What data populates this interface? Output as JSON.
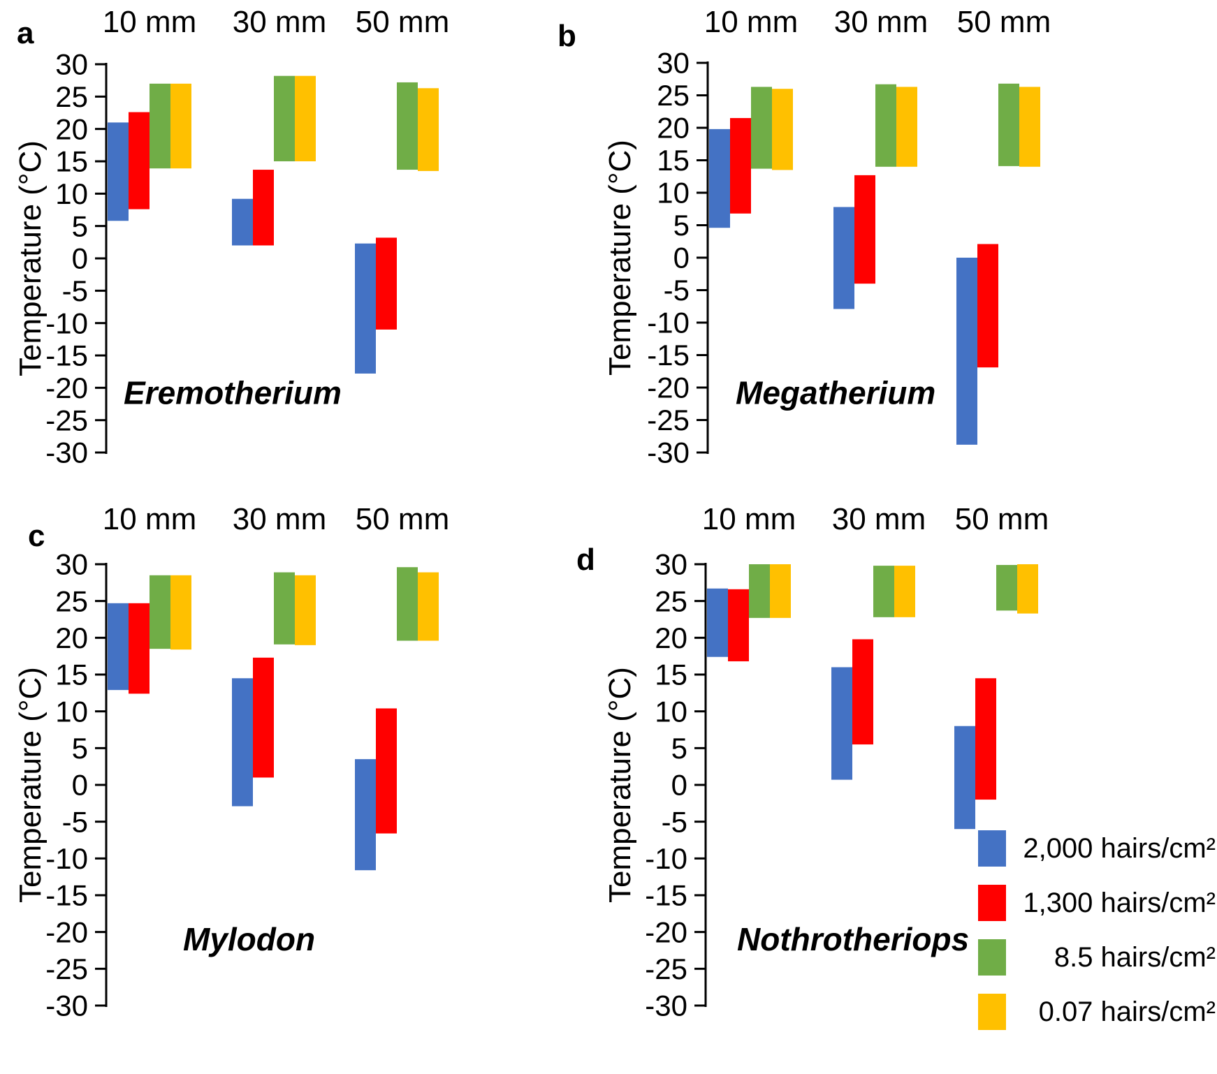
{
  "page": {
    "background": "#ffffff",
    "text_color": "#000000"
  },
  "axis": {
    "ylabel": "Temperature (°C)",
    "ylim": [
      -30,
      30
    ],
    "ytick_step": 5,
    "yticks": [
      30,
      25,
      20,
      15,
      10,
      5,
      0,
      -5,
      -10,
      -15,
      -20,
      -25,
      -30
    ]
  },
  "colors": {
    "blue": "#4472C4",
    "red": "#FF0000",
    "green": "#70AD47",
    "yellow": "#FFC000",
    "axis": "#000000"
  },
  "legend": {
    "items": [
      {
        "name": "density-2000",
        "label": "2,000 hairs/cm²",
        "color": "#4472C4"
      },
      {
        "name": "density-1300",
        "label": "1,300 hairs/cm²",
        "color": "#FF0000"
      },
      {
        "name": "density-8-5",
        "label": "8.5 hairs/cm²",
        "color": "#70AD47"
      },
      {
        "name": "density-0-07",
        "label": "0.07 hairs/cm²",
        "color": "#FFC000"
      }
    ]
  },
  "chart_data": [
    {
      "type": "bar",
      "subtype": "floating-range-bars",
      "panel_letter": "a",
      "title": "Eremotherium",
      "categories": [
        "10 mm",
        "30 mm",
        "50 mm"
      ],
      "xlabel": "",
      "ylabel": "Temperature (°C)",
      "ylim": [
        -30,
        30
      ],
      "grid": false,
      "series": [
        {
          "name": "2,000 hairs/cm²",
          "color": "#4472C4",
          "ranges": [
            [
              5.8,
              21.0
            ],
            [
              2.0,
              9.2
            ],
            [
              -17.8,
              2.3
            ]
          ]
        },
        {
          "name": "1,300 hairs/cm²",
          "color": "#FF0000",
          "ranges": [
            [
              7.6,
              22.6
            ],
            [
              2.0,
              13.7
            ],
            [
              -11.0,
              3.2
            ]
          ]
        },
        {
          "name": "8.5 hairs/cm²",
          "color": "#70AD47",
          "ranges": [
            [
              13.9,
              27.0
            ],
            [
              15.0,
              28.2
            ],
            [
              13.7,
              27.2
            ]
          ]
        },
        {
          "name": "0.07 hairs/cm²",
          "color": "#FFC000",
          "ranges": [
            [
              13.9,
              27.0
            ],
            [
              15.0,
              28.2
            ],
            [
              13.5,
              26.3
            ]
          ]
        }
      ]
    },
    {
      "type": "bar",
      "subtype": "floating-range-bars",
      "panel_letter": "b",
      "title": "Megatherium",
      "categories": [
        "10 mm",
        "30 mm",
        "50 mm"
      ],
      "xlabel": "",
      "ylabel": "Temperature (°C)",
      "ylim": [
        -30,
        30
      ],
      "grid": false,
      "series": [
        {
          "name": "2,000 hairs/cm²",
          "color": "#4472C4",
          "ranges": [
            [
              4.6,
              19.8
            ],
            [
              -7.9,
              7.8
            ],
            [
              -28.8,
              0.0
            ]
          ]
        },
        {
          "name": "1,300 hairs/cm²",
          "color": "#FF0000",
          "ranges": [
            [
              6.8,
              21.5
            ],
            [
              -4.0,
              12.7
            ],
            [
              -16.9,
              2.1
            ]
          ]
        },
        {
          "name": "8.5 hairs/cm²",
          "color": "#70AD47",
          "ranges": [
            [
              13.7,
              26.3
            ],
            [
              14.0,
              26.7
            ],
            [
              14.1,
              26.8
            ]
          ]
        },
        {
          "name": "0.07 hairs/cm²",
          "color": "#FFC000",
          "ranges": [
            [
              13.5,
              26.0
            ],
            [
              14.0,
              26.3
            ],
            [
              14.0,
              26.3
            ]
          ]
        }
      ]
    },
    {
      "type": "bar",
      "subtype": "floating-range-bars",
      "panel_letter": "c",
      "title": "Mylodon",
      "categories": [
        "10 mm",
        "30 mm",
        "50 mm"
      ],
      "xlabel": "",
      "ylabel": "Temperature (°C)",
      "ylim": [
        -30,
        30
      ],
      "grid": false,
      "series": [
        {
          "name": "2,000 hairs/cm²",
          "color": "#4472C4",
          "ranges": [
            [
              12.9,
              24.7
            ],
            [
              -2.9,
              14.5
            ],
            [
              -11.6,
              3.5
            ]
          ]
        },
        {
          "name": "1,300 hairs/cm²",
          "color": "#FF0000",
          "ranges": [
            [
              12.4,
              24.7
            ],
            [
              1.0,
              17.3
            ],
            [
              -6.6,
              10.4
            ]
          ]
        },
        {
          "name": "8.5 hairs/cm²",
          "color": "#70AD47",
          "ranges": [
            [
              18.5,
              28.5
            ],
            [
              19.1,
              28.9
            ],
            [
              19.6,
              29.6
            ]
          ]
        },
        {
          "name": "0.07 hairs/cm²",
          "color": "#FFC000",
          "ranges": [
            [
              18.4,
              28.5
            ],
            [
              19.0,
              28.5
            ],
            [
              19.6,
              28.9
            ]
          ]
        }
      ]
    },
    {
      "type": "bar",
      "subtype": "floating-range-bars",
      "panel_letter": "d",
      "title": "Nothrotheriops",
      "categories": [
        "10 mm",
        "30 mm",
        "50 mm"
      ],
      "xlabel": "",
      "ylabel": "Temperature (°C)",
      "ylim": [
        -30,
        30
      ],
      "grid": false,
      "series": [
        {
          "name": "2,000 hairs/cm²",
          "color": "#4472C4",
          "ranges": [
            [
              17.4,
              26.7
            ],
            [
              0.7,
              16.0
            ],
            [
              -6.0,
              8.0
            ]
          ]
        },
        {
          "name": "1,300 hairs/cm²",
          "color": "#FF0000",
          "ranges": [
            [
              16.8,
              26.6
            ],
            [
              5.5,
              19.8
            ],
            [
              -2.0,
              14.5
            ]
          ]
        },
        {
          "name": "8.5 hairs/cm²",
          "color": "#70AD47",
          "ranges": [
            [
              22.7,
              30.0
            ],
            [
              22.8,
              29.8
            ],
            [
              23.7,
              29.9
            ]
          ]
        },
        {
          "name": "0.07 hairs/cm²",
          "color": "#FFC000",
          "ranges": [
            [
              22.7,
              30.0
            ],
            [
              22.8,
              29.8
            ],
            [
              23.3,
              30.0
            ]
          ]
        }
      ]
    }
  ]
}
